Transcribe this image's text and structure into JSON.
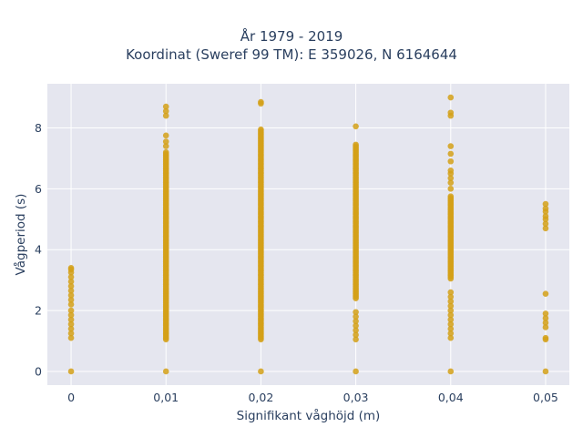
{
  "chart_data": {
    "type": "scatter",
    "title_lines": [
      "År 1979 - 2019",
      "Koordinat (Sweref 99 TM): E 359026, N 6164644"
    ],
    "xlabel": "Signifikant våghöjd (m)",
    "ylabel": "Vågperiod (s)",
    "x_ticks": [
      {
        "value": 0,
        "label": "0"
      },
      {
        "value": 0.01,
        "label": "0,01"
      },
      {
        "value": 0.02,
        "label": "0,02"
      },
      {
        "value": 0.03,
        "label": "0,03"
      },
      {
        "value": 0.04,
        "label": "0,04"
      },
      {
        "value": 0.05,
        "label": "0,05"
      }
    ],
    "y_ticks": [
      {
        "value": 0,
        "label": "0"
      },
      {
        "value": 2,
        "label": "2"
      },
      {
        "value": 4,
        "label": "4"
      },
      {
        "value": 6,
        "label": "6"
      },
      {
        "value": 8,
        "label": "8"
      }
    ],
    "xlim": [
      -0.0025,
      0.0525
    ],
    "ylim": [
      -0.45,
      9.45
    ],
    "grid": true,
    "marker_color": "#d4a017",
    "plot_bg": "#e5e6ef",
    "series": [
      {
        "x": 0,
        "y": [
          0,
          1.1,
          1.25,
          1.4,
          1.55,
          1.7,
          1.85,
          2.0,
          2.2,
          2.35,
          2.5,
          2.65,
          2.8,
          2.95,
          3.1,
          3.25,
          3.35,
          3.4
        ]
      },
      {
        "x": 0.01,
        "y_range": [
          1.05,
          7.2
        ],
        "y": [
          0,
          7.4,
          7.55,
          7.75,
          8.4,
          8.55,
          8.7
        ]
      },
      {
        "x": 0.02,
        "y_range": [
          1.05,
          7.95
        ],
        "y": [
          0,
          8.8,
          8.85
        ]
      },
      {
        "x": 0.03,
        "y_range": [
          2.4,
          7.45
        ],
        "y": [
          0,
          1.05,
          1.2,
          1.35,
          1.5,
          1.65,
          1.8,
          1.95,
          8.05
        ]
      },
      {
        "x": 0.04,
        "y_range": [
          3.05,
          5.75
        ],
        "y": [
          0,
          1.1,
          1.25,
          1.4,
          1.55,
          1.7,
          1.85,
          2.0,
          2.15,
          2.3,
          2.45,
          2.6,
          6.0,
          6.2,
          6.35,
          6.5,
          6.6,
          6.9,
          7.15,
          7.4,
          8.4,
          8.5,
          9.0
        ]
      },
      {
        "x": 0.05,
        "y": [
          0,
          1.05,
          1.1,
          1.45,
          1.6,
          1.75,
          1.9,
          2.55,
          4.7,
          4.85,
          5.0,
          5.1,
          5.25,
          5.35,
          5.5
        ]
      }
    ]
  }
}
